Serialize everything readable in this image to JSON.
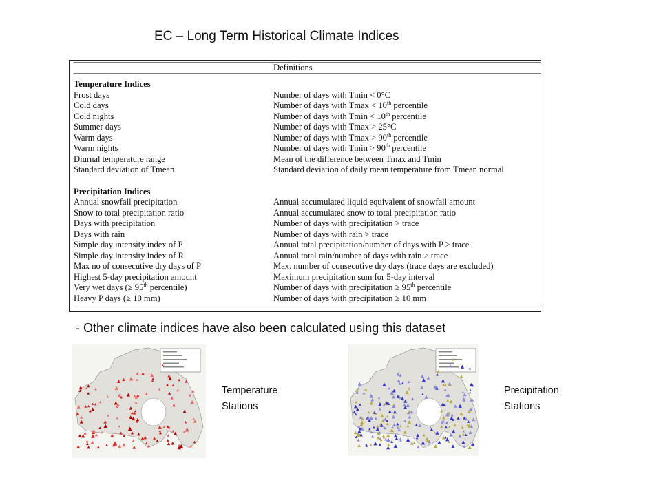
{
  "title": "EC – Long Term Historical Climate Indices",
  "table": {
    "header": "Definitions",
    "sections": [
      {
        "name": "Temperature Indices",
        "rows": [
          {
            "index": [
              "Frost days"
            ],
            "definition": [
              "Number of days with Tmin < 0°C"
            ]
          },
          {
            "index": [
              "Cold days"
            ],
            "definition": [
              "Number of days with Tmax < 10",
              "th",
              " percentile"
            ]
          },
          {
            "index": [
              "Cold nights"
            ],
            "definition": [
              "Number of days with Tmin < 10",
              "th",
              " percentile"
            ]
          },
          {
            "index": [
              "Summer days"
            ],
            "definition": [
              "Number of days with Tmax > 25°C"
            ]
          },
          {
            "index": [
              "Warm days"
            ],
            "definition": [
              "Number of days with Tmax > 90",
              "th",
              " percentile"
            ]
          },
          {
            "index": [
              "Warm nights"
            ],
            "definition": [
              "Number of days with Tmin > 90",
              "th",
              " percentile"
            ]
          },
          {
            "index": [
              "Diurnal temperature range"
            ],
            "definition": [
              "Mean of the difference between Tmax and Tmin"
            ]
          },
          {
            "index": [
              "Standard deviation of Tmean"
            ],
            "definition": [
              "Standard deviation of daily mean temperature from Tmean normal"
            ]
          }
        ]
      },
      {
        "name": "Precipitation Indices",
        "rows": [
          {
            "index": [
              "Annual snowfall precipitation"
            ],
            "definition": [
              "Annual accumulated liquid equivalent of snowfall amount"
            ]
          },
          {
            "index": [
              "Snow to total precipitation ratio"
            ],
            "definition": [
              "Annual accumulated snow to total precipitation ratio"
            ]
          },
          {
            "index": [
              "Days with precipitation"
            ],
            "definition": [
              "Number of days with precipitation > trace"
            ]
          },
          {
            "index": [
              "Days with rain"
            ],
            "definition": [
              "Number of days with rain > trace"
            ]
          },
          {
            "index": [
              "Simple day intensity index of P"
            ],
            "definition": [
              "Annual total precipitation/number of days with P > trace"
            ]
          },
          {
            "index": [
              "Simple day intensity index of R"
            ],
            "definition": [
              "Annual total rain/number of days with rain > trace"
            ]
          },
          {
            "index": [
              "Max no of consecutive dry days of P"
            ],
            "definition": [
              "Max. number of consecutive dry days (trace days are excluded)"
            ]
          },
          {
            "index": [
              "Highest 5-day precipitation amount"
            ],
            "definition": [
              "Maximum precipitation sum for 5-day interval"
            ]
          },
          {
            "index": [
              "Very wet days (≥ 95",
              "th",
              " percentile)"
            ],
            "definition": [
              "Number of days with precipitation ≥ 95",
              "th",
              " percentile"
            ]
          },
          {
            "index": [
              "Heavy P days (≥ 10 mm)"
            ],
            "definition": [
              "Number of days with precipitation ≥ 10 mm"
            ]
          }
        ]
      }
    ]
  },
  "note": "- Other climate indices have also been calculated using this dataset",
  "maps": [
    {
      "label": [
        "Temperature",
        "Stations"
      ]
    },
    {
      "label": [
        "Precipitation",
        "Stations"
      ]
    }
  ]
}
